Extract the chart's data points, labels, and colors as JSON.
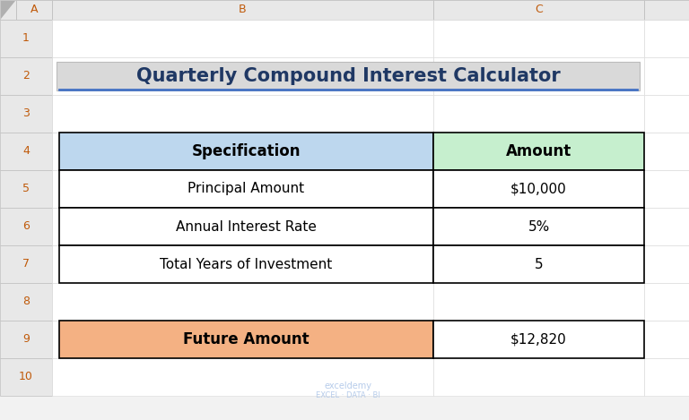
{
  "title": "Quarterly Compound Interest Calculator",
  "title_bg": "#d9d9d9",
  "title_color": "#1f3864",
  "title_fontsize": 15,
  "col_headers": [
    "Specification",
    "Amount"
  ],
  "col_header_bg": [
    "#bdd7ee",
    "#c6efce"
  ],
  "rows": [
    [
      "Principal Amount",
      "$10,000"
    ],
    [
      "Annual Interest Rate",
      "5%"
    ],
    [
      "Total Years of Investment",
      "5"
    ]
  ],
  "row_bg": "#ffffff",
  "footer_label": "Future Amount",
  "footer_value": "$12,820",
  "footer_label_bg": "#f4b183",
  "footer_value_bg": "#ffffff",
  "grid_color": "#000000",
  "col_a_label": "A",
  "col_b_label": "B",
  "col_c_label": "C",
  "row_labels": [
    "1",
    "2",
    "3",
    "4",
    "5",
    "6",
    "7",
    "8",
    "9",
    "10"
  ],
  "watermark_line1": "exceldemy",
  "watermark_line2": "EXCEL · DATA · BI",
  "watermark_color": "#aec6e8",
  "bg_color": "#f2f2f2",
  "cell_bg": "#ffffff",
  "header_bg": "#e8e8e8",
  "header_text_color": "#c05a0a"
}
